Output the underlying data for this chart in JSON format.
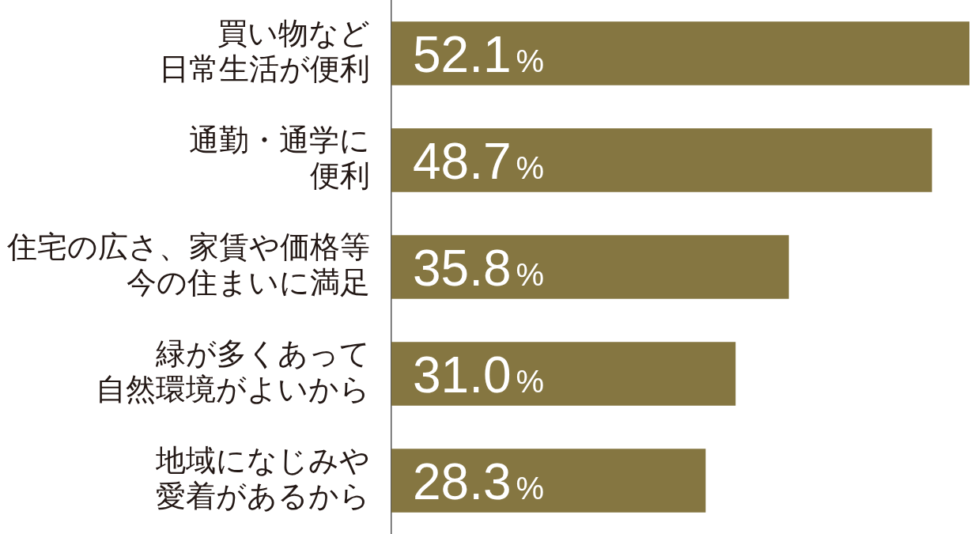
{
  "chart_data": {
    "type": "bar",
    "orientation": "horizontal",
    "categories": [
      "買い物など日常生活が便利",
      "通勤・通学に便利",
      "住宅の広さ、家賃や価格等今の住まいに満足",
      "緑が多くあって自然環境がよいから",
      "地域になじみや愛着があるから"
    ],
    "values": [
      52.1,
      48.7,
      35.8,
      31.0,
      28.3
    ],
    "value_labels": [
      "52.1%",
      "48.7%",
      "35.8%",
      "31.0%",
      "28.3%"
    ],
    "color": "#857641",
    "tick_labels": "y",
    "grid": false
  }
}
